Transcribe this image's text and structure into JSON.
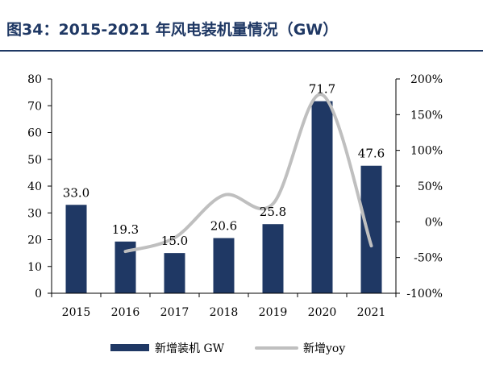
{
  "header": {
    "title": "图34：2015-2021 年风电装机量情况（GW）"
  },
  "chart_data": {
    "type": "bar",
    "title": "图34：2015-2021 年风电装机量情况（GW）",
    "categories": [
      "2015",
      "2016",
      "2017",
      "2018",
      "2019",
      "2020",
      "2021"
    ],
    "series": [
      {
        "name": "新增装机 GW",
        "type": "bar",
        "axis": "left",
        "values": [
          33.0,
          19.3,
          15.0,
          20.6,
          25.8,
          71.7,
          47.6
        ],
        "labels": [
          "33.0",
          "19.3",
          "15.0",
          "20.6",
          "25.8",
          "71.7",
          "47.6"
        ],
        "color": "#1f3864"
      },
      {
        "name": "新增yoy",
        "type": "line",
        "axis": "right",
        "x": [
          "2016",
          "2017",
          "2018",
          "2019",
          "2020",
          "2021"
        ],
        "values": [
          -41.5,
          -22.3,
          37.3,
          25.2,
          177.9,
          -33.6
        ],
        "color": "#bfbfbf"
      }
    ],
    "y_left": {
      "min": 0,
      "max": 80,
      "ticks": [
        "0",
        "10",
        "20",
        "30",
        "40",
        "50",
        "60",
        "70",
        "80"
      ]
    },
    "y_right": {
      "min": -100,
      "max": 200,
      "ticks": [
        "-100%",
        "-50%",
        "0%",
        "50%",
        "100%",
        "150%",
        "200%"
      ]
    },
    "legend_position": "bottom",
    "grid": false
  }
}
